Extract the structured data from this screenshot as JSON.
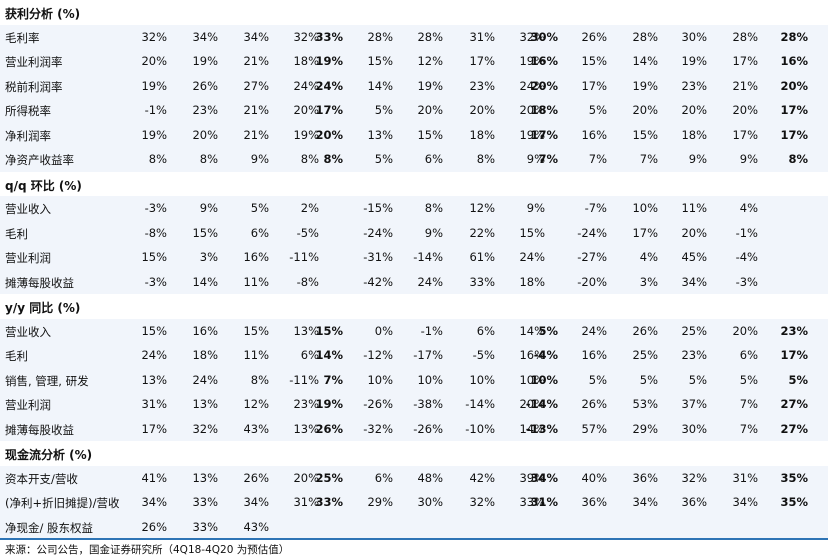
{
  "sections": [
    {
      "title": "获利分析 (%)",
      "rows": [
        {
          "label": "毛利率",
          "values": [
            "32%",
            "34%",
            "34%",
            "32%",
            "33%",
            "28%",
            "28%",
            "31%",
            "32%",
            "30%",
            "26%",
            "28%",
            "30%",
            "28%",
            "28%"
          ]
        },
        {
          "label": "营业利润率",
          "values": [
            "20%",
            "19%",
            "21%",
            "18%",
            "19%",
            "15%",
            "12%",
            "17%",
            "19%",
            "16%",
            "15%",
            "14%",
            "19%",
            "17%",
            "16%"
          ]
        },
        {
          "label": "税前利润率",
          "values": [
            "19%",
            "26%",
            "27%",
            "24%",
            "24%",
            "14%",
            "19%",
            "23%",
            "24%",
            "20%",
            "17%",
            "19%",
            "23%",
            "21%",
            "20%"
          ]
        },
        {
          "label": "所得税率",
          "values": [
            "-1%",
            "23%",
            "21%",
            "20%",
            "17%",
            "5%",
            "20%",
            "20%",
            "20%",
            "18%",
            "5%",
            "20%",
            "20%",
            "20%",
            "17%"
          ]
        },
        {
          "label": "净利润率",
          "values": [
            "19%",
            "20%",
            "21%",
            "19%",
            "20%",
            "13%",
            "15%",
            "18%",
            "19%",
            "17%",
            "16%",
            "15%",
            "18%",
            "17%",
            "17%"
          ]
        },
        {
          "label": "净资产收益率",
          "values": [
            "8%",
            "8%",
            "9%",
            "8%",
            "8%",
            "5%",
            "6%",
            "8%",
            "9%",
            "7%",
            "7%",
            "7%",
            "9%",
            "9%",
            "8%"
          ]
        }
      ]
    },
    {
      "title": "q/q 环比 (%)",
      "rows": [
        {
          "label": "营业收入",
          "values": [
            "-3%",
            "9%",
            "5%",
            "2%",
            "",
            "-15%",
            "8%",
            "12%",
            "9%",
            "",
            "-7%",
            "10%",
            "11%",
            "4%",
            ""
          ]
        },
        {
          "label": "毛利",
          "values": [
            "-8%",
            "15%",
            "6%",
            "-5%",
            "",
            "-24%",
            "9%",
            "22%",
            "15%",
            "",
            "-24%",
            "17%",
            "20%",
            "-1%",
            ""
          ]
        },
        {
          "label": "营业利润",
          "values": [
            "15%",
            "3%",
            "16%",
            "-11%",
            "",
            "-31%",
            "-14%",
            "61%",
            "24%",
            "",
            "-27%",
            "4%",
            "45%",
            "-4%",
            ""
          ]
        },
        {
          "label": "摊薄每股收益",
          "values": [
            "-3%",
            "14%",
            "11%",
            "-8%",
            "",
            "-42%",
            "24%",
            "33%",
            "18%",
            "",
            "-20%",
            "3%",
            "34%",
            "-3%",
            ""
          ]
        }
      ]
    },
    {
      "title": "y/y 同比 (%)",
      "rows": [
        {
          "label": "营业收入",
          "values": [
            "15%",
            "16%",
            "15%",
            "13%",
            "15%",
            "0%",
            "-1%",
            "6%",
            "14%",
            "5%",
            "24%",
            "26%",
            "25%",
            "20%",
            "23%"
          ]
        },
        {
          "label": "毛利",
          "values": [
            "24%",
            "18%",
            "11%",
            "6%",
            "14%",
            "-12%",
            "-17%",
            "-5%",
            "16%",
            "-4%",
            "16%",
            "25%",
            "23%",
            "6%",
            "17%"
          ]
        },
        {
          "label": "销售, 管理, 研发",
          "values": [
            "13%",
            "24%",
            "8%",
            "-11%",
            "7%",
            "10%",
            "10%",
            "10%",
            "10%",
            "10%",
            "5%",
            "5%",
            "5%",
            "5%",
            "5%"
          ]
        },
        {
          "label": "营业利润",
          "values": [
            "31%",
            "13%",
            "12%",
            "23%",
            "19%",
            "-26%",
            "-38%",
            "-14%",
            "20%",
            "-14%",
            "26%",
            "53%",
            "37%",
            "7%",
            "27%"
          ]
        },
        {
          "label": "摊薄每股收益",
          "values": [
            "17%",
            "32%",
            "43%",
            "13%",
            "26%",
            "-32%",
            "-26%",
            "-10%",
            "14%",
            "-13%",
            "57%",
            "29%",
            "30%",
            "7%",
            "27%"
          ]
        }
      ]
    },
    {
      "title": "现金流分析 (%)",
      "rows": [
        {
          "label": "资本开支/营收",
          "values": [
            "41%",
            "13%",
            "26%",
            "20%",
            "25%",
            "6%",
            "48%",
            "42%",
            "39%",
            "34%",
            "40%",
            "36%",
            "32%",
            "31%",
            "35%"
          ]
        },
        {
          "label": "(净利+折旧摊提)/营收",
          "values": [
            "34%",
            "33%",
            "34%",
            "31%",
            "33%",
            "29%",
            "30%",
            "32%",
            "33%",
            "31%",
            "36%",
            "34%",
            "36%",
            "34%",
            "35%"
          ]
        },
        {
          "label": "净现金/ 股东权益",
          "values": [
            "26%",
            "33%",
            "43%",
            "",
            "",
            "",
            "",
            "",
            "",
            "",
            "",
            "",
            "",
            "",
            ""
          ]
        }
      ]
    }
  ],
  "source": "来源：公司公告，国金证券研究所（4Q18-4Q20 为预估值）"
}
